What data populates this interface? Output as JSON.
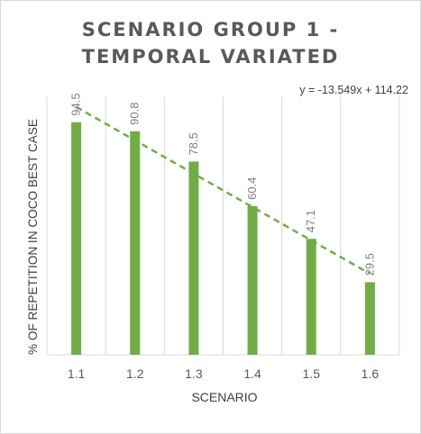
{
  "chart_data": {
    "type": "bar",
    "title": "SCENARIO GROUP 1 -\nTEMPORAL VARIATED",
    "xlabel": "SCENARIO",
    "ylabel": "% OF REPETITION IN COCO BEST CASE",
    "categories": [
      "1.1",
      "1.2",
      "1.3",
      "1.4",
      "1.5",
      "1.6"
    ],
    "series": [
      {
        "values": [
          94.5,
          90.8,
          78.5,
          60.4,
          47.1,
          29.5
        ],
        "color": "#70ad47"
      }
    ],
    "data_labels": [
      "94.5",
      "90.8",
      "78.5",
      "60.4",
      "47.1",
      "29.5"
    ],
    "trendline": {
      "type": "linear",
      "slope": -13.549,
      "intercept": 114.22,
      "equation": "y = -13.549x + 114.22",
      "style": "dashed",
      "color": "#70ad47"
    },
    "ylim": [
      0,
      105
    ],
    "grid": {
      "vertical": true,
      "horizontal": false
    },
    "legend": "none"
  }
}
